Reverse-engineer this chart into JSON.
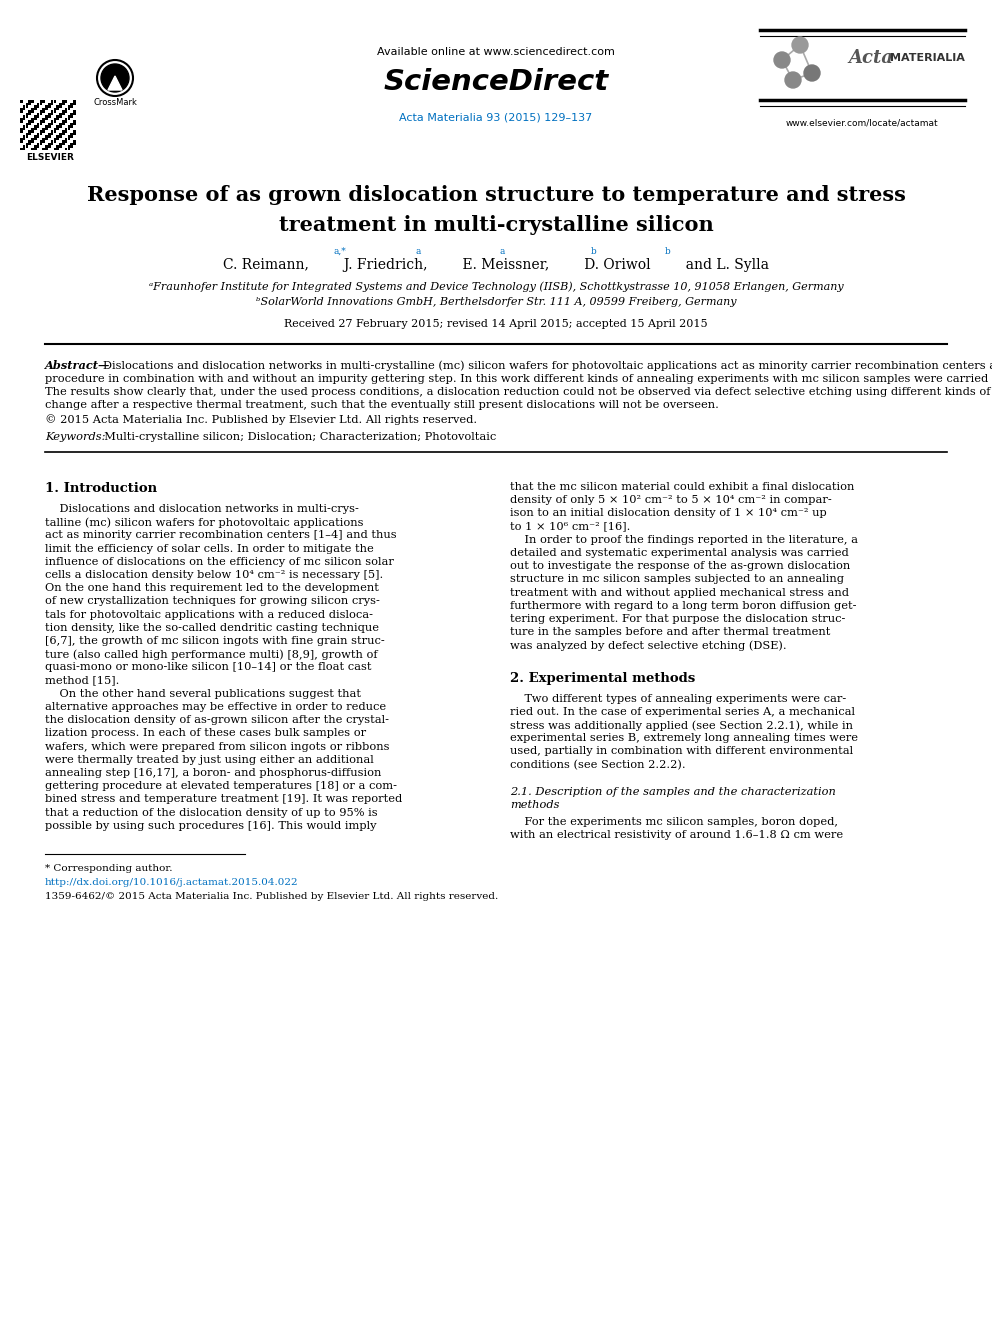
{
  "bg_color": "#ffffff",
  "figsize": [
    9.92,
    13.23
  ],
  "dpi": 100,
  "header": {
    "available_online": "Available online at www.sciencedirect.com",
    "sciencedirect": "ScienceDirect",
    "journal_info": "Acta Materialia 93 (2015) 129–137",
    "elsevier": "ELSEVIER",
    "crossmark": "CrossMark",
    "acta_text1": "Acta",
    "acta_text2": "MATERIALIA",
    "website": "www.elsevier.com/locate/actamat"
  },
  "title_line1": "Response of as grown dislocation structure to temperature and stress",
  "title_line2": "treatment in multi-crystalline silicon",
  "author_line": "C. Reimann,        J. Friedrich,        E. Meissner,        D. Oriwol        and L. Sylla",
  "affil_a": "ᵃFraunhofer Institute for Integrated Systems and Device Technology (IISB), Schottkystrasse 10, 91058 Erlangen, Germany",
  "affil_b": "ᵇSolarWorld Innovations GmbH, Berthelsdorfer Str. 111 A, 09599 Freiberg, Germany",
  "received": "Received 27 February 2015; revised 14 April 2015; accepted 15 April 2015",
  "abstract_bold": "Abstract",
  "abstract_dash": "—",
  "abstract_body": "Dislocations and dislocation networks in multi-crystalline (mc) silicon wafers for photovoltaic applications act as minority carrier recombination centers and thus limit the efficiency of solar cells. The literature shows results for a massive dislocation reduction by applying an annealing procedure in combination with and without an impurity gettering step. In this work different kinds of annealing experiments with mc silicon samples were carried out at 1200 °C and 1365 °C for 1 h to 96 h under an applied stress of up to 4.2 MPa under pure inert or boron containing atmospheres. The results show clearly that, under the used process conditions, a dislocation reduction could not be observed via defect selective etching using different kinds of etchants. It was found, that it is essential to carefully select the etching solution as the electrical resistivity of the samples might change after a respective thermal treatment, such that the eventually still present dislocations will not be overseen.",
  "abstract_copy": "© 2015 Acta Materialia Inc. Published by Elsevier Ltd. All rights reserved.",
  "kw_label": "Keywords:",
  "kw_text": "  Multi-crystalline silicon; Dislocation; Characterization; Photovoltaic",
  "sec1_title": "1. Introduction",
  "sec1_left_lines": [
    "    Dislocations and dislocation networks in multi-crys-",
    "talline (mc) silicon wafers for photovoltaic applications",
    "act as minority carrier recombination centers [1–4] and thus",
    "limit the efficiency of solar cells. In order to mitigate the",
    "influence of dislocations on the efficiency of mc silicon solar",
    "cells a dislocation density below 10⁴ cm⁻² is necessary [5].",
    "On the one hand this requirement led to the development",
    "of new crystallization techniques for growing silicon crys-",
    "tals for photovoltaic applications with a reduced disloca-",
    "tion density, like the so-called dendritic casting technique",
    "[6,7], the growth of mc silicon ingots with fine grain struc-",
    "ture (also called high performance multi) [8,9], growth of",
    "quasi-mono or mono-like silicon [10–14] or the float cast",
    "method [15].",
    "    On the other hand several publications suggest that",
    "alternative approaches may be effective in order to reduce",
    "the dislocation density of as-grown silicon after the crystal-",
    "lization process. In each of these cases bulk samples or",
    "wafers, which were prepared from silicon ingots or ribbons",
    "were thermally treated by just using either an additional",
    "annealing step [16,17], a boron- and phosphorus-diffusion",
    "gettering procedure at elevated temperatures [18] or a com-",
    "bined stress and temperature treatment [19]. It was reported",
    "that a reduction of the dislocation density of up to 95% is",
    "possible by using such procedures [16]. This would imply"
  ],
  "sec1_right_lines": [
    "that the mc silicon material could exhibit a final dislocation",
    "density of only 5 × 10² cm⁻² to 5 × 10⁴ cm⁻² in compar-",
    "ison to an initial dislocation density of 1 × 10⁴ cm⁻² up",
    "to 1 × 10⁶ cm⁻² [16].",
    "    In order to proof the findings reported in the literature, a",
    "detailed and systematic experimental analysis was carried",
    "out to investigate the response of the as-grown dislocation",
    "structure in mc silicon samples subjected to an annealing",
    "treatment with and without applied mechanical stress and",
    "furthermore with regard to a long term boron diffusion get-",
    "tering experiment. For that purpose the dislocation struc-",
    "ture in the samples before and after thermal treatment",
    "was analyzed by defect selective etching (DSE)."
  ],
  "sec2_title": "2. Experimental methods",
  "sec2_lines": [
    "    Two different types of annealing experiments were car-",
    "ried out. In the case of experimental series A, a mechanical",
    "stress was additionally applied (see Section 2.2.1), while in",
    "experimental series B, extremely long annealing times were",
    "used, partially in combination with different environmental",
    "conditions (see Section 2.2.2)."
  ],
  "sec21_title_line1": "2.1. Description of the samples and the characterization",
  "sec21_title_line2": "methods",
  "sec21_lines": [
    "    For the experiments mc silicon samples, boron doped,",
    "with an electrical resistivity of around 1.6–1.8 Ω cm were"
  ],
  "footnote_star": "* Corresponding author.",
  "footnote_url": "http://dx.doi.org/10.1016/j.actamat.2015.04.022",
  "footnote_issn": "1359-6462/© 2015 Acta Materialia Inc. Published by Elsevier Ltd. All rights reserved.",
  "link_color": "#0070c0",
  "ref_color": "#0070c0"
}
